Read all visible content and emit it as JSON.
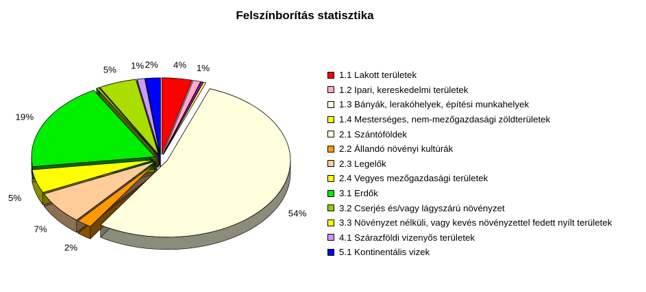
{
  "chart_data": {
    "type": "pie",
    "title": "Felszínborítás statisztika",
    "legend_position": "right",
    "exploded": true,
    "slices": [
      {
        "label": "1.1 Lakott területek",
        "value": 4,
        "display": "4%",
        "color": "#ff0000"
      },
      {
        "label": "1.2 Ipari, kereskedelmi területek",
        "value": 1,
        "display": "1%",
        "color": "#ffaacc"
      },
      {
        "label": "1.3 Bányák, lerakóhelyek, építési munkahelyek",
        "value": 0,
        "display": "",
        "color": "#aa00aa"
      },
      {
        "label": "1.4 Mesterséges, nem-mezőgazdasági zöldterületek",
        "value": 0,
        "display": "",
        "color": "#ffff66"
      },
      {
        "label": "2.1 Szántóföldek",
        "value": 54,
        "display": "54%",
        "color": "#ffffdd"
      },
      {
        "label": "2.2 Állandó növényi kultúrák",
        "value": 2,
        "display": "2%",
        "color": "#ff9900"
      },
      {
        "label": "2.3 Legelők",
        "value": 7,
        "display": "7%",
        "color": "#ffcc99"
      },
      {
        "label": "2.4 Vegyes mezőgazdasági területek",
        "value": 5,
        "display": "5%",
        "color": "#ffff00"
      },
      {
        "label": "3.1 Erdők",
        "value": 19,
        "display": "19%",
        "color": "#00ee00"
      },
      {
        "label": "3.2 Cserjés és/vagy lágyszárú növényzet",
        "value": 0,
        "display": "",
        "color": "#99cc00"
      },
      {
        "label": "3.3 Növényzet nélküli, vagy kevés növényzettel fedett nyílt területek",
        "value": 5,
        "display": "5%",
        "color": "#aadd00"
      },
      {
        "label": "4.1 Szárazföldi vizenyős területek",
        "value": 1,
        "display": "1%",
        "color": "#cc99ff"
      },
      {
        "label": "5.1 Kontinentális vizek",
        "value": 2,
        "display": "2%",
        "color": "#0000ff"
      }
    ],
    "legend_items": [
      {
        "label": "1.1 Lakott területek",
        "color": "#ff0000"
      },
      {
        "label": "1.2 Ipari, kereskedelmi területek",
        "color": "#ffaacc"
      },
      {
        "label": "1.3 Bányák, lerakóhelyek, építési munkahelyek",
        "color": "#ffffdd"
      },
      {
        "label": "1.4 Mesterséges, nem-mezőgazdasági zöldterületek",
        "color": "#ffff00"
      },
      {
        "label": "2.1 Szántóföldek",
        "color": "#ffffdd"
      },
      {
        "label": "2.2 Állandó növényi kultúrák",
        "color": "#ff9900"
      },
      {
        "label": "2.3 Legelők",
        "color": "#ffcc99"
      },
      {
        "label": "2.4 Vegyes mezőgazdasági területek",
        "color": "#ffff00"
      },
      {
        "label": "3.1 Erdők",
        "color": "#00ee00"
      },
      {
        "label": "3.2 Cserjés és/vagy lágyszárú növényzet",
        "color": "#99cc00"
      },
      {
        "label": "3.3 Növényzet nélküli, vagy kevés növényzettel fedett nyílt területek",
        "color": "#ffff00"
      },
      {
        "label": "4.1 Szárazföldi vizenyős területek",
        "color": "#cc99ff"
      },
      {
        "label": "5.1 Kontinentális vizek",
        "color": "#0000ff"
      }
    ]
  }
}
